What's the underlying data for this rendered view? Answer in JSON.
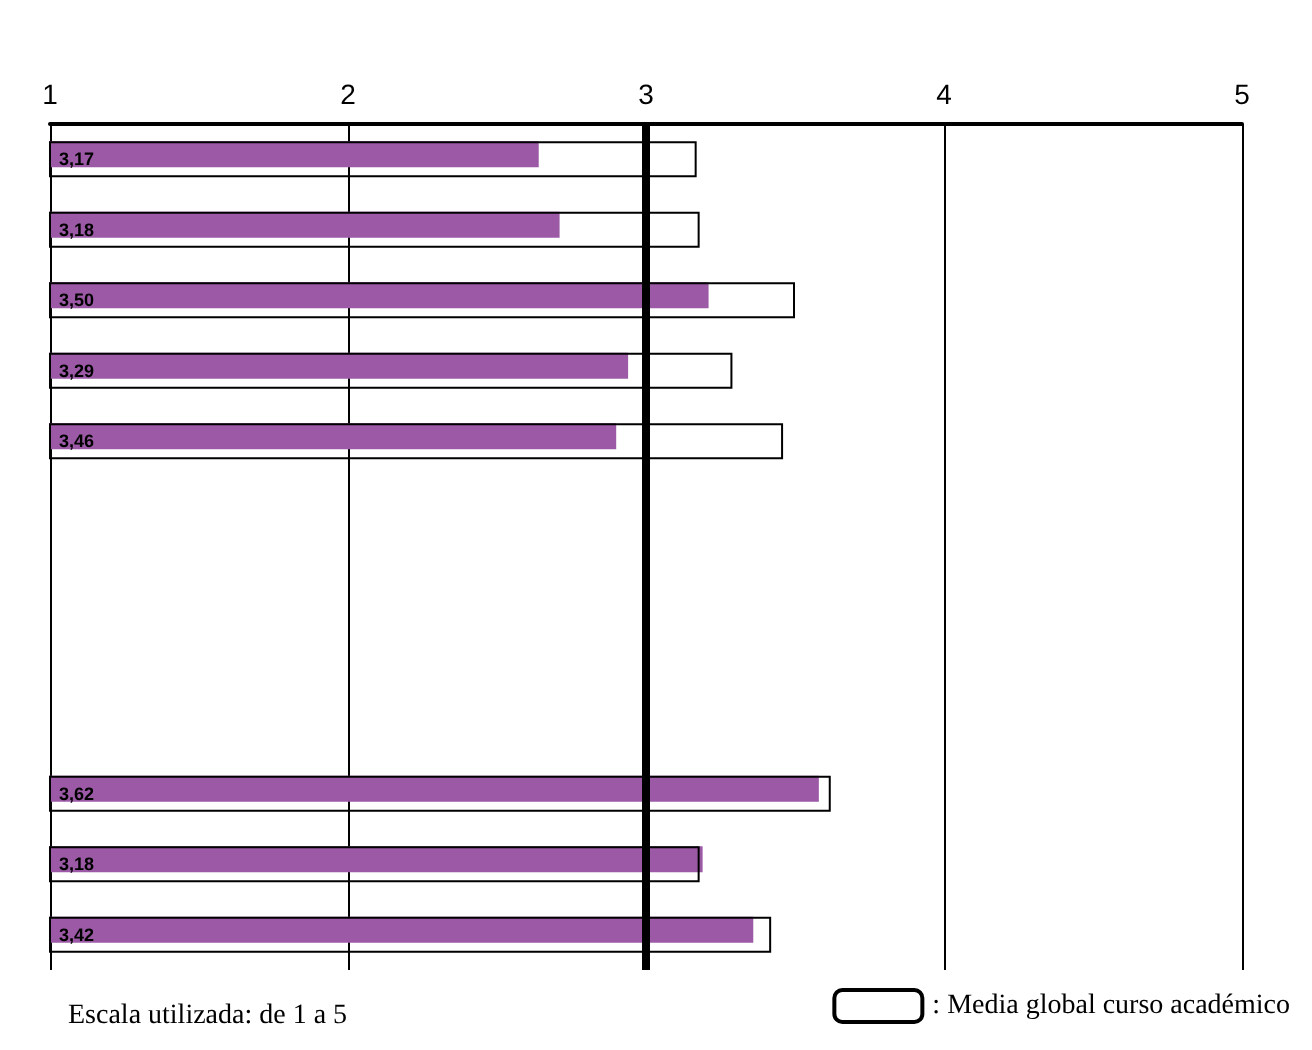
{
  "chart_data": {
    "type": "bar",
    "orientation": "horizontal",
    "categories": [
      null,
      null,
      null,
      null,
      null,
      null,
      null,
      null,
      null,
      null,
      null,
      null
    ],
    "series": [
      {
        "color": "#9c5aa6",
        "values": [
          2.64,
          2.71,
          3.21,
          2.94,
          2.9,
          null,
          null,
          null,
          null,
          3.58,
          3.19,
          3.36
        ]
      },
      {
        "name": ": Media global curso académico",
        "color": "#000000",
        "values": [
          3.17,
          3.18,
          3.5,
          3.29,
          3.46,
          null,
          null,
          null,
          null,
          3.62,
          3.18,
          3.42
        ],
        "value_labels": [
          "3,17",
          "3,18",
          "3,50",
          "3,29",
          "3,46",
          null,
          null,
          null,
          null,
          "3,62",
          "3,18",
          "3,42"
        ]
      }
    ],
    "xlim": [
      1,
      5
    ],
    "xticks": [
      1,
      2,
      3,
      4,
      5
    ],
    "grid": "x",
    "tick_labels": "x",
    "legend": "bottom right",
    "ref_lines": [
      {
        "axis": "x",
        "value": 3,
        "color": "#000000"
      }
    ],
    "annotations": [
      "Escala utilizada: de 1 a 5"
    ]
  }
}
